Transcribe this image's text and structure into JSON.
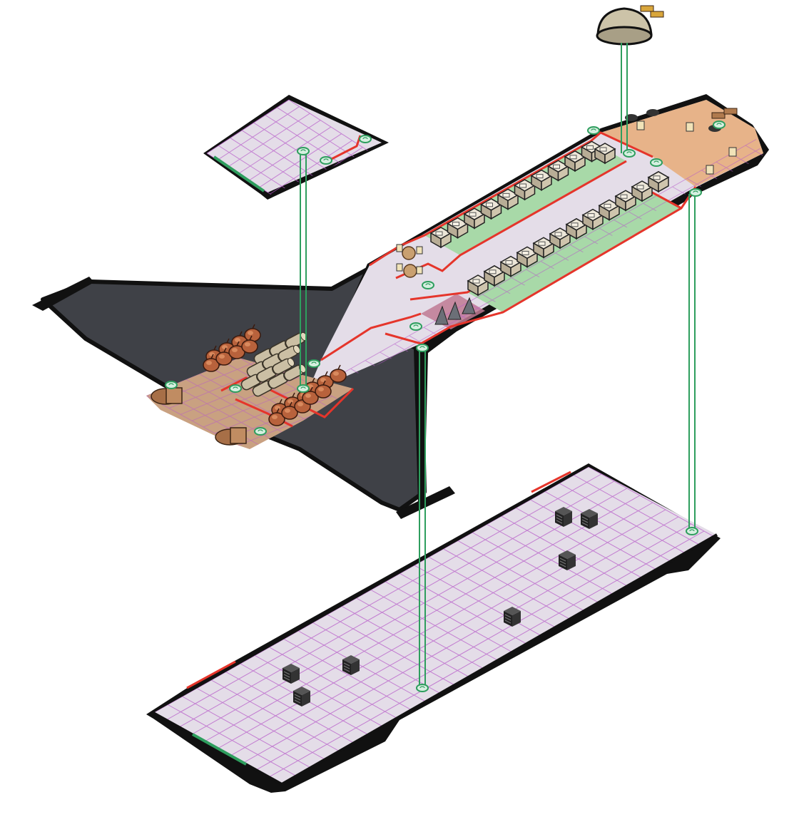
{
  "scene": {
    "kind": "isometric starship deck plan",
    "decks": [
      {
        "id": "bridge-dome",
        "label": ""
      },
      {
        "id": "upper-platform",
        "label": ""
      },
      {
        "id": "main-deck",
        "label": ""
      },
      {
        "id": "lower-hangar-deck",
        "label": ""
      }
    ],
    "colors": {
      "floor": "#e4dde8",
      "grid": "#b75bc9",
      "wall": "#e5352b",
      "hull": "#111111",
      "wing": "#3f4147",
      "cabin": "#a8d9a8",
      "engine_bay": "#c9a181",
      "cockpit": "#e8ab78",
      "lift": "#2e9e5e",
      "crate": "#2a2a2a",
      "pod": "#b8623c",
      "barrel": "#cbbfa4"
    },
    "icons": [
      "lift-icon",
      "crate-icon",
      "fuel-pod-icon",
      "barrel-icon",
      "cabin-bunk-icon",
      "chair-icon",
      "engine-nozzle-icon",
      "console-icon",
      "dome-icon"
    ]
  }
}
